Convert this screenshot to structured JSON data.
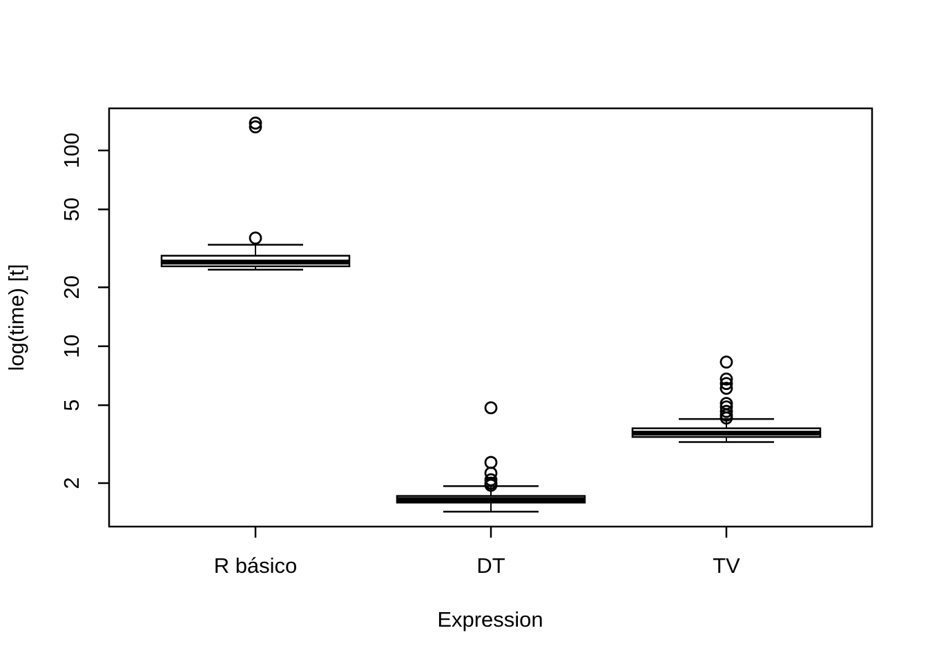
{
  "figure": {
    "background": "#ffffff",
    "foreground": "#000000"
  },
  "chart_data": {
    "type": "boxplot",
    "xlabel": "Expression",
    "ylabel": "log(time) [t]",
    "y_scale": "log10",
    "ylim": [
      1.2,
      164
    ],
    "y_ticks": [
      2,
      5,
      10,
      20,
      50,
      100
    ],
    "grid": false,
    "legend": "none",
    "categories": [
      "R básico",
      "DT",
      "TV"
    ],
    "series": [
      {
        "name": "R básico",
        "whisker_low": 24.6,
        "q1": 25.6,
        "median": 26.9,
        "q3": 29.0,
        "whisker_high": 33.0,
        "outliers": [
          35.7,
          132,
          138
        ]
      },
      {
        "name": "DT",
        "whisker_low": 1.43,
        "q1": 1.59,
        "median": 1.65,
        "q3": 1.72,
        "whisker_high": 1.93,
        "outliers": [
          1.95,
          2.0,
          2.08,
          2.25,
          2.55,
          4.85
        ]
      },
      {
        "name": "TV",
        "whisker_low": 3.24,
        "q1": 3.44,
        "median": 3.6,
        "q3": 3.81,
        "whisker_high": 4.25,
        "outliers": [
          4.3,
          4.45,
          4.65,
          4.9,
          5.1,
          6.1,
          6.45,
          6.8,
          8.3
        ]
      }
    ]
  }
}
